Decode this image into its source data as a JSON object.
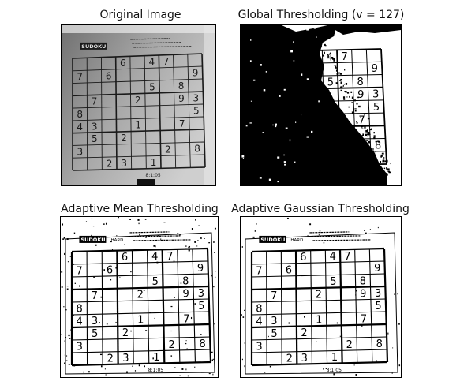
{
  "panels": [
    {
      "title": "Original Image",
      "style": "original",
      "header_label": "SUDOKU",
      "footer_label": "8:1:05",
      "colors": {
        "bg_light": "#cfcfcf",
        "bg_dark": "#707070",
        "ink": "#1a1a1a"
      }
    },
    {
      "title": "Global Thresholding (v = 127)",
      "style": "global",
      "colors": {
        "dark": "#000000",
        "light": "#ffffff"
      }
    },
    {
      "title": "Adaptive Mean Thresholding",
      "style": "mean",
      "header_label": "SUDOKU",
      "header_sub": "HARD",
      "footer_label": "8:1:05",
      "colors": {
        "bg": "#ffffff",
        "ink": "#000000"
      }
    },
    {
      "title": "Adaptive Gaussian Thresholding",
      "style": "gaussian",
      "header_label": "SUDOKU",
      "header_sub": "HARD",
      "footer_label": "8:1:05",
      "colors": {
        "bg": "#ffffff",
        "ink": "#000000"
      }
    }
  ],
  "sudoku": {
    "rows": [
      [
        "",
        "",
        "",
        "6",
        "",
        "4",
        "7",
        "",
        ""
      ],
      [
        "7",
        "",
        "6",
        "",
        "",
        "",
        "",
        "",
        "9"
      ],
      [
        "",
        "",
        "",
        "",
        "",
        "5",
        "",
        "8",
        ""
      ],
      [
        "",
        "7",
        "",
        "",
        "2",
        "",
        "",
        "9",
        "3"
      ],
      [
        "8",
        "",
        "",
        "",
        "",
        "",
        "",
        "",
        "5"
      ],
      [
        "4",
        "3",
        "",
        "",
        "1",
        "",
        "",
        "7",
        ""
      ],
      [
        "",
        "5",
        "",
        "2",
        "",
        "",
        "",
        "",
        ""
      ],
      [
        "3",
        "",
        "",
        "",
        "",
        "",
        "2",
        "",
        "8"
      ],
      [
        "",
        "",
        "2",
        "3",
        "",
        "1",
        "",
        "",
        ""
      ]
    ]
  }
}
